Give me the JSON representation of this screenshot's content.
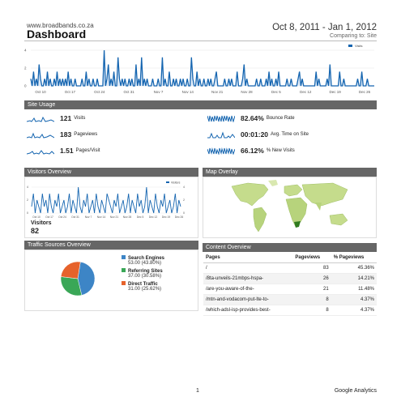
{
  "header": {
    "site": "www.broadbands.co.za",
    "title": "Dashboard",
    "date_range": "Oct 8, 2011 - Jan 1, 2012",
    "comparing": "Comparing to: Site"
  },
  "main_chart": {
    "legend": "Visits",
    "x_labels": [
      "Oct 10",
      "Oct 17",
      "Oct 24",
      "Oct 31",
      "Nov 7",
      "Nov 14",
      "Nov 21",
      "Nov 28",
      "Dec 5",
      "Dec 12",
      "Dec 19",
      "Dec 26"
    ],
    "y_ticks": [
      "4",
      "2",
      "0"
    ],
    "ylim": [
      0,
      5
    ],
    "values": [
      1,
      0,
      2,
      0,
      1,
      0,
      3,
      1,
      0,
      0,
      1,
      0,
      2,
      0,
      1,
      0,
      0,
      1,
      0,
      2,
      0,
      1,
      0,
      1,
      0,
      1,
      0,
      2,
      0,
      1,
      0,
      0,
      1,
      0,
      0,
      0,
      0,
      1,
      0,
      0,
      2,
      0,
      1,
      0,
      0,
      1,
      0,
      0,
      1,
      0,
      0,
      0,
      0,
      5,
      0,
      1,
      3,
      0,
      1,
      0,
      2,
      0,
      0,
      4,
      1,
      0,
      1,
      0,
      1,
      0,
      0,
      1,
      0,
      1,
      0,
      0,
      3,
      0,
      1,
      0,
      4,
      0,
      1,
      0,
      1,
      0,
      0,
      0,
      1,
      0,
      0,
      0,
      1,
      0,
      0,
      4,
      0,
      1,
      0,
      0,
      2,
      0,
      0,
      1,
      0,
      1,
      0,
      0,
      1,
      0,
      1,
      0,
      0,
      1,
      0,
      0,
      4,
      1,
      0,
      0,
      2,
      0,
      1,
      0,
      0,
      1,
      0,
      0,
      1,
      0,
      1,
      0,
      0,
      1,
      2,
      0,
      0,
      0,
      0,
      0,
      1,
      0,
      0,
      1,
      0,
      1,
      0,
      0,
      0,
      2,
      0,
      0,
      0,
      1,
      3,
      0,
      1,
      0,
      0,
      0,
      0,
      0,
      0,
      1,
      0,
      0,
      1,
      0,
      0,
      0,
      1,
      0,
      2,
      0,
      1,
      0,
      0,
      1,
      0,
      2,
      0,
      0,
      0,
      0,
      0,
      1,
      0,
      0,
      1,
      0,
      0,
      0,
      0,
      1,
      2,
      0,
      1,
      0,
      0,
      0,
      0,
      0,
      0,
      0,
      0,
      0,
      2,
      0,
      1,
      0,
      0,
      0,
      0,
      0,
      1,
      0,
      3,
      0,
      0,
      0,
      0,
      0,
      0,
      2,
      0,
      0,
      1,
      0,
      0,
      0,
      0,
      0,
      0,
      0,
      0,
      0,
      1,
      0,
      0,
      2,
      0,
      0,
      0,
      1,
      0,
      0,
      0,
      0,
      0
    ]
  },
  "site_usage": {
    "title": "Site Usage",
    "metrics": [
      {
        "value": "121",
        "label": "Visits"
      },
      {
        "value": "183",
        "label": "Pageviews"
      },
      {
        "value": "1.51",
        "label": "Pages/Visit"
      },
      {
        "value": "82.64%",
        "label": "Bounce Rate"
      },
      {
        "value": "00:01:20",
        "label": "Avg. Time on Site"
      },
      {
        "value": "66.12%",
        "label": "% New Visits"
      }
    ]
  },
  "visitors_overview": {
    "title": "Visitors Overview",
    "legend": "Visitors",
    "x_labels": [
      "Oct 10",
      "Oct 17",
      "Oct 24",
      "Oct 31",
      "Nov 7",
      "Nov 14",
      "Nov 21",
      "Nov 28",
      "Dec 5",
      "Dec 12",
      "Dec 19",
      "Dec 26"
    ],
    "y_ticks": [
      "4",
      "2",
      "0"
    ],
    "visitors_label": "Visitors",
    "visitors_value": "82",
    "values": [
      1,
      3,
      0,
      2,
      1,
      0,
      3,
      1,
      2,
      0,
      3,
      1,
      0,
      2,
      1,
      3,
      0,
      1,
      2,
      0,
      1,
      3,
      0,
      2,
      1,
      0,
      4,
      1,
      0,
      2,
      1,
      3,
      0,
      1,
      2,
      0,
      3,
      1,
      0,
      2,
      1,
      0,
      3,
      2,
      1,
      0,
      2,
      1,
      3,
      0,
      1,
      2,
      0,
      1,
      3,
      0,
      2,
      1,
      0,
      3,
      1,
      2,
      0,
      1,
      4,
      0,
      2,
      1,
      0,
      3,
      1,
      0,
      2,
      1,
      3,
      0,
      1,
      2,
      0,
      1,
      3,
      0,
      2,
      1
    ]
  },
  "map_overlay": {
    "title": "Map Overlay"
  },
  "traffic_sources": {
    "title": "Traffic Sources Overview",
    "items": [
      {
        "name": "Search Engines",
        "stat": "53.00 (43.80%)",
        "value": 53.0,
        "color": "#3d85c6"
      },
      {
        "name": "Referring Sites",
        "stat": "37.00 (30.58%)",
        "value": 37.0,
        "color": "#3aa757"
      },
      {
        "name": "Direct Traffic",
        "stat": "31.00 (25.62%)",
        "value": 31.0,
        "color": "#e6622b"
      }
    ]
  },
  "content_overview": {
    "title": "Content Overview",
    "headers": [
      "Pages",
      "Pageviews",
      "% Pageviews"
    ],
    "rows": [
      [
        "/",
        "83",
        "45.36%"
      ],
      [
        "/8ta-unveils-21mbps-hspa-",
        "26",
        "14.21%"
      ],
      [
        "/are-you-aware-of-the-",
        "21",
        "11.48%"
      ],
      [
        "/mtn-and-vodacom-put-lte-to-",
        "8",
        "4.37%"
      ],
      [
        "/which-adsl-isp-provides-best-",
        "8",
        "4.37%"
      ]
    ]
  },
  "footer": {
    "page": "1",
    "brand": "Google Analytics"
  },
  "colors": {
    "line": "#1565b0",
    "section_bar": "#666666",
    "land": "#c5dc8c",
    "land_dark": "#5a9e2e",
    "water": "#ffffff"
  }
}
